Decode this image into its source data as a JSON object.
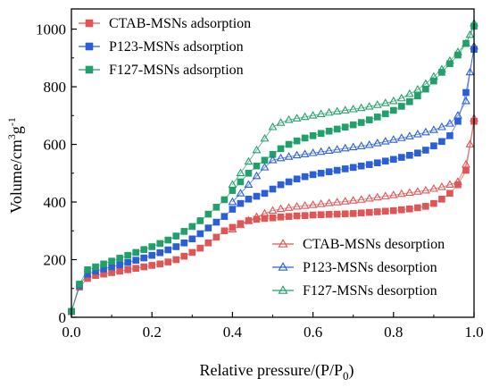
{
  "chart_data": {
    "type": "scatter",
    "xlabel": "Relative pressure/(P/P",
    "xlabel_sub": "0",
    "xlabel_end": ")",
    "ylabel": "Volume/cm",
    "ylabel_sup1": "3",
    "ylabel_mid": "g",
    "ylabel_sup2": "-1",
    "xlim": [
      0.0,
      1.0
    ],
    "ylim": [
      0,
      1070
    ],
    "x_ticks": [
      "0.0",
      "0.2",
      "0.4",
      "0.6",
      "0.8",
      "1.0"
    ],
    "y_ticks": [
      "0",
      "200",
      "400",
      "600",
      "800",
      "1000"
    ],
    "grid": false,
    "legend_adsorption_placement": "top-left",
    "legend_desorption_placement": "bottom-right",
    "series": [
      {
        "name": "CTAB-MSNs adsorption",
        "color": "#e05555",
        "marker": "filled-square",
        "x": [
          0.0,
          0.02,
          0.04,
          0.06,
          0.08,
          0.1,
          0.12,
          0.14,
          0.16,
          0.18,
          0.2,
          0.22,
          0.24,
          0.26,
          0.28,
          0.3,
          0.32,
          0.34,
          0.36,
          0.38,
          0.4,
          0.42,
          0.44,
          0.46,
          0.48,
          0.5,
          0.52,
          0.54,
          0.56,
          0.58,
          0.6,
          0.62,
          0.64,
          0.66,
          0.68,
          0.7,
          0.72,
          0.74,
          0.76,
          0.78,
          0.8,
          0.82,
          0.84,
          0.86,
          0.88,
          0.9,
          0.92,
          0.94,
          0.96,
          0.98,
          1.0
        ],
        "y": [
          20,
          105,
          135,
          145,
          150,
          155,
          160,
          165,
          170,
          175,
          180,
          185,
          192,
          200,
          212,
          225,
          240,
          258,
          278,
          300,
          312,
          325,
          335,
          340,
          343,
          345,
          348,
          350,
          352,
          353,
          355,
          356,
          357,
          358,
          359,
          360,
          362,
          364,
          366,
          368,
          370,
          373,
          376,
          380,
          385,
          395,
          410,
          430,
          460,
          510,
          680
        ]
      },
      {
        "name": "P123-MSNs adsorption",
        "color": "#2a5fd8",
        "marker": "filled-square",
        "x": [
          0.0,
          0.02,
          0.04,
          0.06,
          0.08,
          0.1,
          0.12,
          0.14,
          0.16,
          0.18,
          0.2,
          0.22,
          0.24,
          0.26,
          0.28,
          0.3,
          0.32,
          0.34,
          0.36,
          0.38,
          0.4,
          0.42,
          0.44,
          0.46,
          0.48,
          0.5,
          0.52,
          0.54,
          0.56,
          0.58,
          0.6,
          0.62,
          0.64,
          0.66,
          0.68,
          0.7,
          0.72,
          0.74,
          0.76,
          0.78,
          0.8,
          0.82,
          0.84,
          0.86,
          0.88,
          0.9,
          0.92,
          0.94,
          0.96,
          0.98,
          1.0
        ],
        "y": [
          20,
          110,
          150,
          160,
          168,
          175,
          182,
          190,
          198,
          206,
          215,
          224,
          234,
          245,
          258,
          272,
          290,
          310,
          330,
          350,
          375,
          395,
          410,
          420,
          430,
          445,
          460,
          470,
          480,
          488,
          495,
          500,
          505,
          510,
          515,
          520,
          525,
          530,
          536,
          542,
          548,
          555,
          562,
          570,
          580,
          595,
          610,
          630,
          680,
          780,
          930
        ]
      },
      {
        "name": "F127-MSNs adsorption",
        "color": "#22a06b",
        "marker": "filled-square",
        "x": [
          0.0,
          0.02,
          0.04,
          0.06,
          0.08,
          0.1,
          0.12,
          0.14,
          0.16,
          0.18,
          0.2,
          0.22,
          0.24,
          0.26,
          0.28,
          0.3,
          0.32,
          0.34,
          0.36,
          0.38,
          0.4,
          0.42,
          0.44,
          0.46,
          0.48,
          0.5,
          0.52,
          0.54,
          0.56,
          0.58,
          0.6,
          0.62,
          0.64,
          0.66,
          0.68,
          0.7,
          0.72,
          0.74,
          0.76,
          0.78,
          0.8,
          0.82,
          0.84,
          0.86,
          0.88,
          0.9,
          0.92,
          0.94,
          0.96,
          0.98,
          1.0
        ],
        "y": [
          20,
          115,
          165,
          175,
          185,
          195,
          205,
          215,
          225,
          235,
          245,
          256,
          268,
          282,
          298,
          315,
          335,
          358,
          382,
          408,
          440,
          470,
          500,
          525,
          545,
          565,
          585,
          600,
          612,
          622,
          630,
          638,
          646,
          653,
          660,
          668,
          676,
          685,
          695,
          706,
          718,
          732,
          748,
          768,
          792,
          820,
          850,
          880,
          910,
          950,
          1010
        ]
      },
      {
        "name": "CTAB-MSNs desorption",
        "color": "#e05555",
        "marker": "open-triangle",
        "x": [
          1.0,
          0.99,
          0.98,
          0.96,
          0.94,
          0.92,
          0.9,
          0.88,
          0.86,
          0.84,
          0.82,
          0.8,
          0.78,
          0.76,
          0.74,
          0.72,
          0.7,
          0.68,
          0.66,
          0.64,
          0.62,
          0.6,
          0.58,
          0.56,
          0.54,
          0.52,
          0.5,
          0.48,
          0.46,
          0.44,
          0.42,
          0.4
        ],
        "y": [
          690,
          600,
          530,
          470,
          460,
          452,
          446,
          440,
          436,
          432,
          428,
          424,
          420,
          416,
          412,
          408,
          405,
          402,
          399,
          396,
          393,
          390,
          387,
          384,
          380,
          376,
          370,
          360,
          348,
          335,
          320,
          305
        ]
      },
      {
        "name": "P123-MSNs desorption",
        "color": "#2a5fd8",
        "marker": "open-triangle",
        "x": [
          1.0,
          0.99,
          0.98,
          0.96,
          0.94,
          0.92,
          0.9,
          0.88,
          0.86,
          0.84,
          0.82,
          0.8,
          0.78,
          0.76,
          0.74,
          0.72,
          0.7,
          0.68,
          0.66,
          0.64,
          0.62,
          0.6,
          0.58,
          0.56,
          0.54,
          0.52,
          0.5,
          0.48,
          0.46,
          0.44,
          0.42,
          0.4
        ],
        "y": [
          940,
          850,
          750,
          700,
          672,
          660,
          650,
          642,
          635,
          628,
          622,
          616,
          610,
          604,
          598,
          594,
          590,
          586,
          582,
          578,
          574,
          570,
          566,
          562,
          557,
          552,
          545,
          520,
          490,
          460,
          430,
          400
        ]
      },
      {
        "name": "F127-MSNs desorption",
        "color": "#22a06b",
        "marker": "open-triangle",
        "x": [
          1.0,
          0.99,
          0.98,
          0.96,
          0.94,
          0.92,
          0.9,
          0.88,
          0.86,
          0.84,
          0.82,
          0.8,
          0.78,
          0.76,
          0.74,
          0.72,
          0.7,
          0.68,
          0.66,
          0.64,
          0.62,
          0.6,
          0.58,
          0.56,
          0.54,
          0.52,
          0.5,
          0.48,
          0.46,
          0.44,
          0.42,
          0.4
        ],
        "y": [
          1020,
          980,
          950,
          920,
          890,
          860,
          835,
          810,
          790,
          775,
          760,
          750,
          743,
          737,
          731,
          726,
          722,
          718,
          714,
          710,
          705,
          700,
          695,
          690,
          685,
          675,
          660,
          620,
          580,
          540,
          500,
          460
        ]
      }
    ]
  }
}
